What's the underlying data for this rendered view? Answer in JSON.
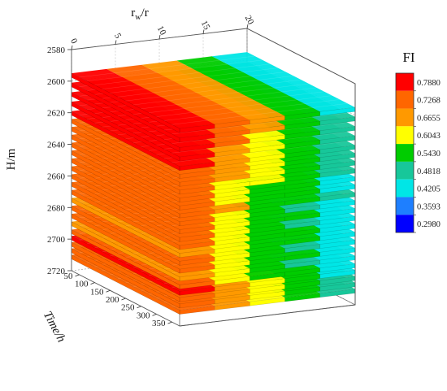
{
  "chart_data": {
    "type": "3d-layered-surface",
    "title": "",
    "axes": {
      "x": {
        "label": "r",
        "label_sub": "w",
        "label_tail": "/r",
        "range": [
          0,
          20
        ],
        "ticks": [
          0,
          5,
          10,
          15,
          20
        ]
      },
      "y": {
        "label": "Time/h",
        "range": [
          25,
          375
        ],
        "ticks": [
          50,
          100,
          150,
          200,
          250,
          300,
          350
        ]
      },
      "z": {
        "label": "H/m",
        "range": [
          2580,
          2720
        ],
        "ticks": [
          2580,
          2600,
          2620,
          2640,
          2660,
          2680,
          2700,
          2720
        ],
        "inverted": true
      }
    },
    "grid": true,
    "colorbar": {
      "title": "FI",
      "placement": "right",
      "ticks": [
        0.788,
        0.7268,
        0.6655,
        0.6043,
        0.543,
        0.4818,
        0.4205,
        0.3593,
        0.298
      ],
      "tick_labels": [
        "0.7880",
        "0.7268",
        "0.6655",
        "0.6043",
        "0.5430",
        "0.4818",
        "0.4205",
        "0.3593",
        "0.2980"
      ],
      "colors": [
        "#0000ff",
        "#1e7fff",
        "#00e6e6",
        "#17c79a",
        "#00cc00",
        "#ffff00",
        "#ff9900",
        "#ff6600",
        "#ff0000"
      ]
    },
    "layers": [
      {
        "depth": 2595,
        "fi": [
          0.79,
          0.7,
          0.64,
          0.56,
          0.45
        ]
      },
      {
        "depth": 2601,
        "fi": [
          0.78,
          0.69,
          0.63,
          0.57,
          0.5
        ]
      },
      {
        "depth": 2607,
        "fi": [
          0.78,
          0.68,
          0.62,
          0.57,
          0.5
        ]
      },
      {
        "depth": 2613,
        "fi": [
          0.77,
          0.67,
          0.62,
          0.56,
          0.48
        ]
      },
      {
        "depth": 2619,
        "fi": [
          0.74,
          0.66,
          0.61,
          0.56,
          0.48
        ]
      },
      {
        "depth": 2624,
        "fi": [
          0.71,
          0.65,
          0.6,
          0.55,
          0.48
        ]
      },
      {
        "depth": 2629,
        "fi": [
          0.69,
          0.63,
          0.59,
          0.55,
          0.48
        ]
      },
      {
        "depth": 2634,
        "fi": [
          0.69,
          0.62,
          0.58,
          0.53,
          0.47
        ]
      },
      {
        "depth": 2639,
        "fi": [
          0.7,
          0.62,
          0.57,
          0.52,
          0.46
        ]
      },
      {
        "depth": 2644,
        "fi": [
          0.68,
          0.62,
          0.57,
          0.52,
          0.45
        ]
      },
      {
        "depth": 2649,
        "fi": [
          0.69,
          0.63,
          0.57,
          0.53,
          0.48
        ]
      },
      {
        "depth": 2654,
        "fi": [
          0.68,
          0.62,
          0.57,
          0.5,
          0.44
        ]
      },
      {
        "depth": 2659,
        "fi": [
          0.69,
          0.62,
          0.57,
          0.52,
          0.45
        ]
      },
      {
        "depth": 2664,
        "fi": [
          0.68,
          0.61,
          0.56,
          0.5,
          0.45
        ]
      },
      {
        "depth": 2669,
        "fi": [
          0.68,
          0.61,
          0.56,
          0.52,
          0.46
        ]
      },
      {
        "depth": 2674,
        "fi": [
          0.67,
          0.61,
          0.57,
          0.52,
          0.46
        ]
      },
      {
        "depth": 2679,
        "fi": [
          0.68,
          0.61,
          0.57,
          0.5,
          0.46
        ]
      },
      {
        "depth": 2684,
        "fi": [
          0.68,
          0.61,
          0.56,
          0.52,
          0.45
        ]
      },
      {
        "depth": 2689,
        "fi": [
          0.67,
          0.61,
          0.56,
          0.51,
          0.46
        ]
      },
      {
        "depth": 2694,
        "fi": [
          0.68,
          0.6,
          0.55,
          0.52,
          0.45
        ]
      },
      {
        "depth": 2698,
        "fi": [
          0.79,
          0.67,
          0.58,
          0.54,
          0.46
        ]
      },
      {
        "depth": 2702,
        "fi": [
          0.7,
          0.65,
          0.59,
          0.55,
          0.47
        ]
      },
      {
        "depth": 2706,
        "fi": [
          0.69,
          0.64,
          0.58,
          0.55,
          0.47
        ]
      },
      {
        "depth": 2710,
        "fi": [
          0.68,
          0.63,
          0.58,
          0.55,
          0.48
        ]
      }
    ]
  }
}
